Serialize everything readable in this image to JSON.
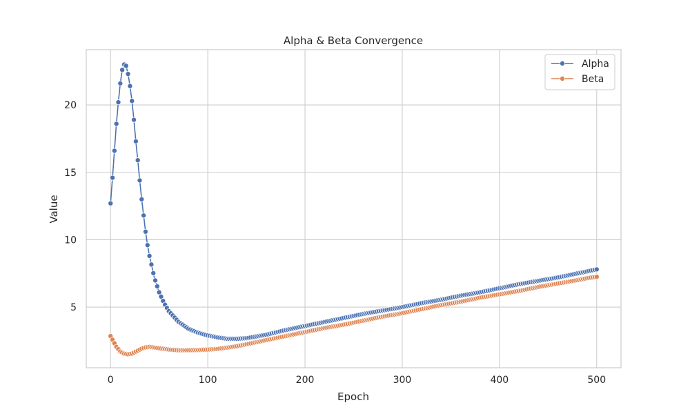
{
  "chart_data": {
    "type": "line",
    "title": "Alpha & Beta Convergence",
    "xlabel": "Epoch",
    "ylabel": "Value",
    "xlim": [
      -25,
      525
    ],
    "ylim": [
      0.5,
      24.1
    ],
    "x_ticks": [
      0,
      100,
      200,
      300,
      400,
      500
    ],
    "y_ticks": [
      5,
      10,
      15,
      20
    ],
    "grid": true,
    "legend_position": "top-right",
    "marker": "circle",
    "series": [
      {
        "name": "Alpha",
        "color": "#4c72b0",
        "x": [
          0,
          2,
          4,
          6,
          8,
          10,
          12,
          14,
          16,
          18,
          20,
          22,
          24,
          26,
          28,
          30,
          32,
          34,
          36,
          38,
          40,
          45,
          50,
          55,
          60,
          70,
          80,
          90,
          100,
          110,
          120,
          130,
          140,
          160,
          180,
          200,
          220,
          240,
          260,
          280,
          300,
          320,
          340,
          360,
          380,
          400,
          420,
          440,
          460,
          480,
          490,
          500
        ],
        "values": [
          12.7,
          14.6,
          16.6,
          18.6,
          20.2,
          21.6,
          22.6,
          23.0,
          22.9,
          22.3,
          21.4,
          20.3,
          18.9,
          17.3,
          15.9,
          14.4,
          13.0,
          11.8,
          10.6,
          9.6,
          8.8,
          7.2,
          6.1,
          5.3,
          4.7,
          3.9,
          3.4,
          3.1,
          2.9,
          2.75,
          2.65,
          2.65,
          2.7,
          2.95,
          3.3,
          3.6,
          3.9,
          4.2,
          4.5,
          4.75,
          5.0,
          5.3,
          5.55,
          5.85,
          6.1,
          6.4,
          6.7,
          6.95,
          7.2,
          7.5,
          7.65,
          7.8
        ]
      },
      {
        "name": "Beta",
        "color": "#dd8452",
        "x": [
          0,
          3,
          6,
          10,
          14,
          18,
          22,
          26,
          30,
          35,
          40,
          45,
          50,
          60,
          70,
          80,
          90,
          100,
          110,
          120,
          130,
          140,
          160,
          180,
          200,
          220,
          240,
          260,
          280,
          300,
          320,
          340,
          360,
          380,
          400,
          420,
          440,
          460,
          480,
          490,
          500
        ],
        "values": [
          2.85,
          2.45,
          2.05,
          1.7,
          1.55,
          1.5,
          1.55,
          1.7,
          1.85,
          2.0,
          2.05,
          2.0,
          1.95,
          1.85,
          1.8,
          1.8,
          1.82,
          1.85,
          1.9,
          2.0,
          2.1,
          2.25,
          2.55,
          2.85,
          3.15,
          3.45,
          3.7,
          4.0,
          4.3,
          4.55,
          4.85,
          5.15,
          5.4,
          5.7,
          5.95,
          6.2,
          6.5,
          6.75,
          7.0,
          7.15,
          7.25
        ]
      }
    ]
  }
}
